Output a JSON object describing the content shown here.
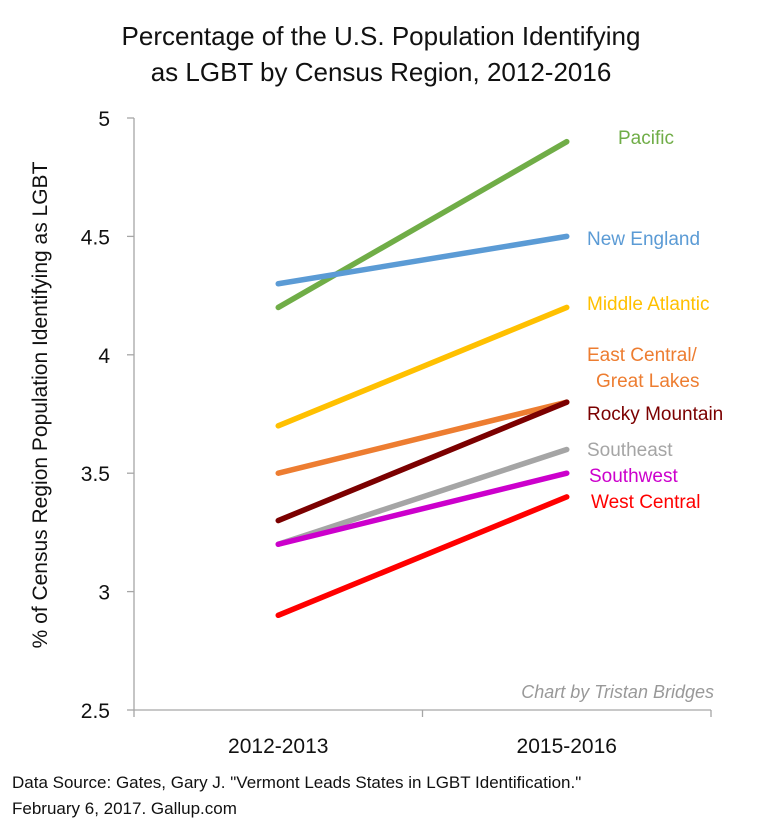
{
  "chart_data": {
    "type": "line",
    "title": [
      "Percentage of the U.S. Population Identifying",
      "as LGBT by Census Region, 2012-2016"
    ],
    "xlabel": "",
    "ylabel": "% of Census Region Population Identifying as LGBT",
    "categories": [
      "2012-2013",
      "2015-2016"
    ],
    "ylim": [
      2.5,
      5
    ],
    "yticks": [
      2.5,
      3,
      3.5,
      4,
      4.5,
      5
    ],
    "ytick_labels": [
      "2.5",
      "3",
      "3.5",
      "4",
      "4.5",
      "5"
    ],
    "grid": false,
    "legend": "inline labels at right end of lines",
    "annotation": "Chart by Tristan Bridges",
    "series": [
      {
        "name": "Pacific",
        "label_lines": [
          "Pacific"
        ],
        "color": "#70ad47",
        "values": [
          4.2,
          4.9
        ]
      },
      {
        "name": "New England",
        "label_lines": [
          "New England"
        ],
        "color": "#5b9bd5",
        "values": [
          4.3,
          4.5
        ]
      },
      {
        "name": "Middle Atlantic",
        "label_lines": [
          "Middle Atlantic"
        ],
        "color": "#ffc000",
        "values": [
          3.7,
          4.2
        ]
      },
      {
        "name": "East Central/ Great Lakes",
        "label_lines": [
          "East Central/",
          "Great Lakes"
        ],
        "color": "#ed7d31",
        "values": [
          3.5,
          3.8
        ]
      },
      {
        "name": "Rocky Mountain",
        "label_lines": [
          "Rocky Mountain"
        ],
        "color": "#7b0000",
        "values": [
          3.3,
          3.8
        ]
      },
      {
        "name": "Southeast",
        "label_lines": [
          "Southeast"
        ],
        "color": "#a5a5a5",
        "values": [
          3.2,
          3.6
        ]
      },
      {
        "name": "Southwest",
        "label_lines": [
          "Southwest"
        ],
        "color": "#cc00cc",
        "values": [
          3.2,
          3.5
        ]
      },
      {
        "name": "West Central",
        "label_lines": [
          "West Central"
        ],
        "color": "#ff0000",
        "values": [
          2.9,
          3.4
        ]
      }
    ]
  },
  "source": {
    "line1": "Data Source: Gates, Gary J. \"Vermont Leads States in LGBT Identification.\"",
    "line2": "February 6, 2017. Gallup.com"
  }
}
